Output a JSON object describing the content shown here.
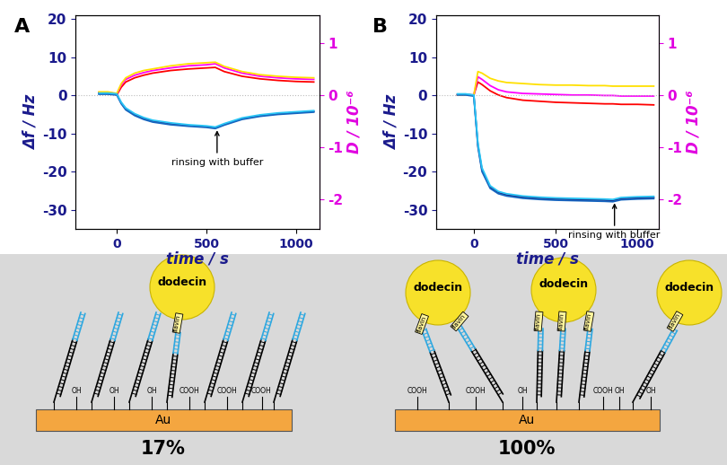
{
  "chart_data": [
    {
      "type": "line",
      "panel_label": "A",
      "x_label": "time / s",
      "y_label": "Δf / Hz",
      "y2_label": "D / 10⁻⁶",
      "x": [
        -100,
        -50,
        0,
        25,
        50,
        100,
        150,
        200,
        300,
        400,
        500,
        550,
        600,
        700,
        800,
        900,
        1000,
        1100
      ],
      "xlim": [
        -230,
        1130
      ],
      "xticks": [
        0,
        500,
        1000
      ],
      "ylim": [
        -35,
        21
      ],
      "yticks": [
        -30,
        -20,
        -10,
        0,
        10,
        20
      ],
      "y2lim": [
        -2.57,
        1.53
      ],
      "y2ticks": [
        -2,
        -1,
        0,
        1
      ],
      "series": [
        {
          "color": "#1a237e",
          "axis": "y",
          "values": [
            0.5,
            0.5,
            0.3,
            -2.0,
            -3.5,
            -5.0,
            -6.0,
            -6.7,
            -7.4,
            -7.9,
            -8.2,
            -8.5,
            -7.6,
            -6.1,
            -5.3,
            -4.8,
            -4.5,
            -4.2
          ]
        },
        {
          "color": "#1565c0",
          "axis": "y",
          "values": [
            0.3,
            0.3,
            0.1,
            -2.2,
            -3.8,
            -5.3,
            -6.3,
            -7.0,
            -7.7,
            -8.1,
            -8.4,
            -8.7,
            -7.8,
            -6.3,
            -5.5,
            -5.0,
            -4.7,
            -4.4
          ]
        },
        {
          "color": "#29c6f6",
          "axis": "y",
          "values": [
            0.6,
            0.6,
            0.4,
            -1.8,
            -3.3,
            -4.8,
            -5.8,
            -6.5,
            -7.2,
            -7.7,
            -8.0,
            -8.3,
            -7.4,
            -5.9,
            -5.1,
            -4.6,
            -4.3,
            -4.0
          ]
        },
        {
          "color": "#ff0000",
          "axis": "y2",
          "values": [
            0.05,
            0.05,
            0.0,
            0.15,
            0.25,
            0.33,
            0.38,
            0.42,
            0.47,
            0.5,
            0.52,
            0.53,
            0.45,
            0.36,
            0.31,
            0.28,
            0.26,
            0.25
          ]
        },
        {
          "color": "#ff00ff",
          "axis": "y2",
          "values": [
            0.05,
            0.05,
            0.02,
            0.2,
            0.3,
            0.38,
            0.43,
            0.47,
            0.52,
            0.56,
            0.58,
            0.6,
            0.52,
            0.42,
            0.36,
            0.33,
            0.31,
            0.3
          ]
        },
        {
          "color": "#ffe000",
          "axis": "y2",
          "values": [
            0.06,
            0.06,
            0.03,
            0.22,
            0.33,
            0.42,
            0.47,
            0.5,
            0.56,
            0.6,
            0.62,
            0.63,
            0.55,
            0.45,
            0.39,
            0.36,
            0.34,
            0.33
          ]
        }
      ],
      "annotation": {
        "text": "rinsing with buffer",
        "x": 560,
        "y": -8.5
      }
    },
    {
      "type": "line",
      "panel_label": "B",
      "x_label": "time / s",
      "y_label": "Δf / Hz",
      "y2_label": "D / 10⁻⁶",
      "x": [
        -100,
        -50,
        0,
        25,
        50,
        100,
        150,
        200,
        300,
        400,
        500,
        600,
        700,
        800,
        850,
        900,
        1000,
        1100
      ],
      "xlim": [
        -230,
        1130
      ],
      "xticks": [
        0,
        500,
        1000
      ],
      "ylim": [
        -35,
        21
      ],
      "yticks": [
        -30,
        -20,
        -10,
        0,
        10,
        20
      ],
      "y2lim": [
        -2.57,
        1.53
      ],
      "y2ticks": [
        -2,
        -1,
        0,
        1
      ],
      "series": [
        {
          "color": "#1a237e",
          "axis": "y",
          "values": [
            0.3,
            0.3,
            0.0,
            -13.0,
            -19.5,
            -24.0,
            -25.5,
            -26.1,
            -26.7,
            -27.0,
            -27.2,
            -27.3,
            -27.4,
            -27.5,
            -27.6,
            -27.1,
            -26.9,
            -26.8
          ]
        },
        {
          "color": "#1565c0",
          "axis": "y",
          "values": [
            0.1,
            0.1,
            -0.2,
            -13.5,
            -20.0,
            -24.4,
            -25.8,
            -26.4,
            -27.0,
            -27.3,
            -27.5,
            -27.6,
            -27.7,
            -27.8,
            -27.9,
            -27.4,
            -27.2,
            -27.1
          ]
        },
        {
          "color": "#29c6f6",
          "axis": "y",
          "values": [
            0.4,
            0.4,
            0.1,
            -12.5,
            -19.0,
            -23.7,
            -25.2,
            -25.8,
            -26.4,
            -26.7,
            -26.9,
            -27.0,
            -27.1,
            -27.2,
            -27.3,
            -26.8,
            -26.6,
            -26.5
          ]
        },
        {
          "color": "#ff0000",
          "axis": "y2",
          "values": [
            0.0,
            0.0,
            0.0,
            0.25,
            0.2,
            0.08,
            0.0,
            -0.05,
            -0.1,
            -0.12,
            -0.14,
            -0.15,
            -0.16,
            -0.17,
            -0.17,
            -0.18,
            -0.18,
            -0.19
          ]
        },
        {
          "color": "#ff00ff",
          "axis": "y2",
          "values": [
            0.0,
            0.0,
            0.0,
            0.35,
            0.3,
            0.18,
            0.1,
            0.06,
            0.03,
            0.02,
            0.01,
            0.0,
            0.0,
            -0.01,
            -0.01,
            -0.02,
            -0.02,
            -0.02
          ]
        },
        {
          "color": "#ffe000",
          "axis": "y2",
          "values": [
            0.0,
            0.0,
            0.0,
            0.45,
            0.42,
            0.32,
            0.27,
            0.24,
            0.22,
            0.2,
            0.19,
            0.19,
            0.18,
            0.18,
            0.17,
            0.17,
            0.17,
            0.17
          ]
        }
      ],
      "annotation": {
        "text": "rinsing with buffer",
        "x": 860,
        "y": -27.6
      }
    }
  ],
  "diagram": {
    "panels": [
      {
        "label": "17%",
        "substrate": "Au",
        "protein": "dodecin",
        "cofactor": "flavin",
        "groups": [
          "OH",
          "COOH"
        ]
      },
      {
        "label": "100%",
        "substrate": "Au",
        "protein": "dodecin",
        "cofactor": "flavin",
        "groups": [
          "OH",
          "COOH"
        ]
      }
    ]
  }
}
